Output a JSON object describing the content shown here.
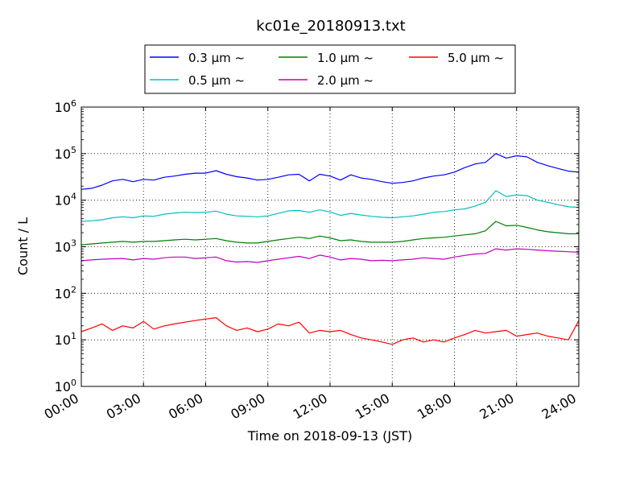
{
  "chart_data": {
    "type": "line",
    "title": "kc01e_20180913.txt",
    "xlabel": "Time on 2018-09-13 (JST)",
    "ylabel": "Count / L",
    "y_scale": "log",
    "ylim": [
      1,
      1000000
    ],
    "xlim": [
      "00:00",
      "24:00"
    ],
    "x_ticks": [
      "00:00",
      "03:00",
      "06:00",
      "09:00",
      "12:00",
      "15:00",
      "18:00",
      "21:00",
      "24:00"
    ],
    "y_ticks": [
      {
        "base": "10",
        "exp": "0"
      },
      {
        "base": "10",
        "exp": "1"
      },
      {
        "base": "10",
        "exp": "2"
      },
      {
        "base": "10",
        "exp": "3"
      },
      {
        "base": "10",
        "exp": "4"
      },
      {
        "base": "10",
        "exp": "5"
      },
      {
        "base": "10",
        "exp": "6"
      }
    ],
    "grid": true,
    "legend_placement": "top-center",
    "x": [
      "00:00",
      "00:30",
      "01:00",
      "01:30",
      "02:00",
      "02:30",
      "03:00",
      "03:30",
      "04:00",
      "04:30",
      "05:00",
      "05:30",
      "06:00",
      "06:30",
      "07:00",
      "07:30",
      "08:00",
      "08:30",
      "09:00",
      "09:30",
      "10:00",
      "10:30",
      "11:00",
      "11:30",
      "12:00",
      "12:30",
      "13:00",
      "13:30",
      "14:00",
      "14:30",
      "15:00",
      "15:30",
      "16:00",
      "16:30",
      "17:00",
      "17:30",
      "18:00",
      "18:30",
      "19:00",
      "19:30",
      "20:00",
      "20:30",
      "21:00",
      "21:30",
      "22:00",
      "22:30",
      "23:00",
      "23:30",
      "24:00"
    ],
    "series": [
      {
        "name": "0.3 μm ~",
        "color": "#0000ff",
        "values": [
          17000,
          18000,
          21000,
          26000,
          28000,
          25000,
          28000,
          27000,
          31000,
          33000,
          36000,
          38000,
          38000,
          43000,
          36000,
          32000,
          30000,
          27000,
          28000,
          31000,
          35000,
          36000,
          26000,
          36000,
          33000,
          27000,
          35000,
          30000,
          28000,
          25000,
          23000,
          24000,
          26000,
          30000,
          33000,
          35000,
          40000,
          50000,
          60000,
          65000,
          100000,
          80000,
          90000,
          85000,
          65000,
          55000,
          48000,
          42000,
          40000
        ]
      },
      {
        "name": "0.5 μm ~",
        "color": "#00bfbf",
        "values": [
          3500,
          3600,
          3800,
          4200,
          4400,
          4200,
          4600,
          4500,
          5000,
          5300,
          5500,
          5400,
          5500,
          5800,
          5000,
          4600,
          4500,
          4400,
          4600,
          5200,
          5900,
          6000,
          5500,
          6200,
          5600,
          4700,
          5200,
          4800,
          4500,
          4300,
          4200,
          4400,
          4600,
          5000,
          5500,
          5700,
          6200,
          6500,
          7500,
          9000,
          16000,
          12000,
          13000,
          12500,
          10000,
          9000,
          8000,
          7200,
          7000
        ]
      },
      {
        "name": "1.0 μm ~",
        "color": "#008000",
        "values": [
          1100,
          1150,
          1200,
          1250,
          1300,
          1250,
          1300,
          1300,
          1350,
          1400,
          1450,
          1400,
          1450,
          1500,
          1350,
          1250,
          1200,
          1200,
          1300,
          1400,
          1500,
          1600,
          1500,
          1700,
          1550,
          1350,
          1400,
          1300,
          1250,
          1250,
          1250,
          1300,
          1400,
          1500,
          1550,
          1600,
          1700,
          1800,
          1900,
          2200,
          3500,
          2800,
          2900,
          2600,
          2300,
          2100,
          2000,
          1900,
          1900
        ]
      },
      {
        "name": "2.0 μm ~",
        "color": "#bf00bf",
        "values": [
          500,
          520,
          540,
          550,
          560,
          520,
          560,
          540,
          580,
          600,
          600,
          560,
          580,
          600,
          500,
          470,
          480,
          460,
          500,
          540,
          580,
          620,
          560,
          660,
          600,
          520,
          560,
          540,
          500,
          510,
          500,
          520,
          540,
          580,
          560,
          540,
          600,
          650,
          700,
          720,
          900,
          850,
          900,
          880,
          850,
          820,
          800,
          780,
          760
        ]
      },
      {
        "name": "5.0 μm ~",
        "color": "#ff0000",
        "values": [
          15,
          18,
          22,
          16,
          20,
          18,
          25,
          17,
          20,
          22,
          24,
          26,
          28,
          30,
          20,
          16,
          18,
          15,
          17,
          22,
          20,
          24,
          14,
          16,
          15,
          16,
          13,
          11,
          10,
          9,
          8,
          10,
          11,
          9,
          10,
          9,
          11,
          13,
          16,
          14,
          15,
          16,
          12,
          13,
          14,
          12,
          11,
          10,
          26
        ]
      }
    ]
  }
}
